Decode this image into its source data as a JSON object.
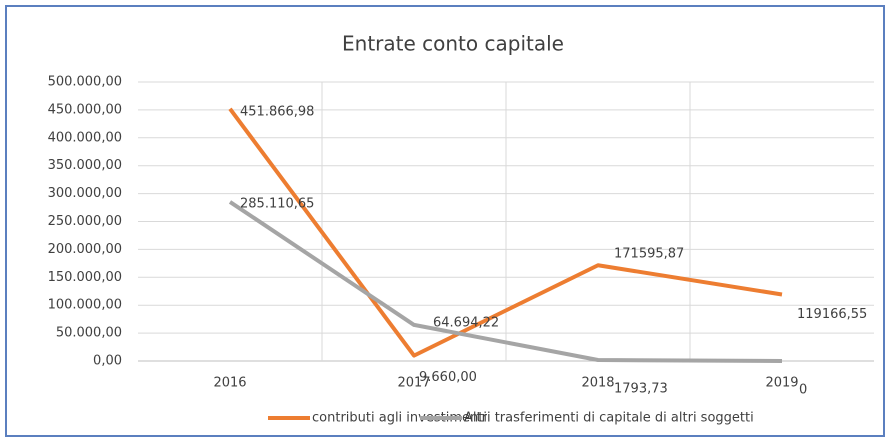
{
  "chart_data": {
    "type": "line",
    "title": "Entrate conto capitale",
    "categories": [
      "2016",
      "2017",
      "2018",
      "2019"
    ],
    "series": [
      {
        "name": "contributi agli investimenti",
        "color": "#ed7d31",
        "values": [
          451866.98,
          9660.0,
          171595.87,
          119166.55
        ],
        "value_labels": [
          "451.866,98",
          "9.660,00",
          "171595,87",
          "119166,55"
        ]
      },
      {
        "name": "Altri trasferimenti di capitale di altri soggetti",
        "color": "#a5a5a5",
        "values": [
          285110.65,
          64694.22,
          1793.73,
          0
        ],
        "value_labels": [
          "285.110,65",
          "64.694,22",
          "1793,73",
          "0"
        ]
      }
    ],
    "ylim": [
      0,
      500000
    ],
    "yticks": [
      {
        "value": 0,
        "label": "0,00"
      },
      {
        "value": 50000,
        "label": "50.000,00"
      },
      {
        "value": 100000,
        "label": "100.000,00"
      },
      {
        "value": 150000,
        "label": "150.000,00"
      },
      {
        "value": 200000,
        "label": "200.000,00"
      },
      {
        "value": 250000,
        "label": "250.000,00"
      },
      {
        "value": 300000,
        "label": "300.000,00"
      },
      {
        "value": 350000,
        "label": "350.000,00"
      },
      {
        "value": 400000,
        "label": "400.000,00"
      },
      {
        "value": 450000,
        "label": "450.000,00"
      },
      {
        "value": 500000,
        "label": "500.000,00"
      }
    ],
    "grid": true,
    "legend": "bottom"
  }
}
